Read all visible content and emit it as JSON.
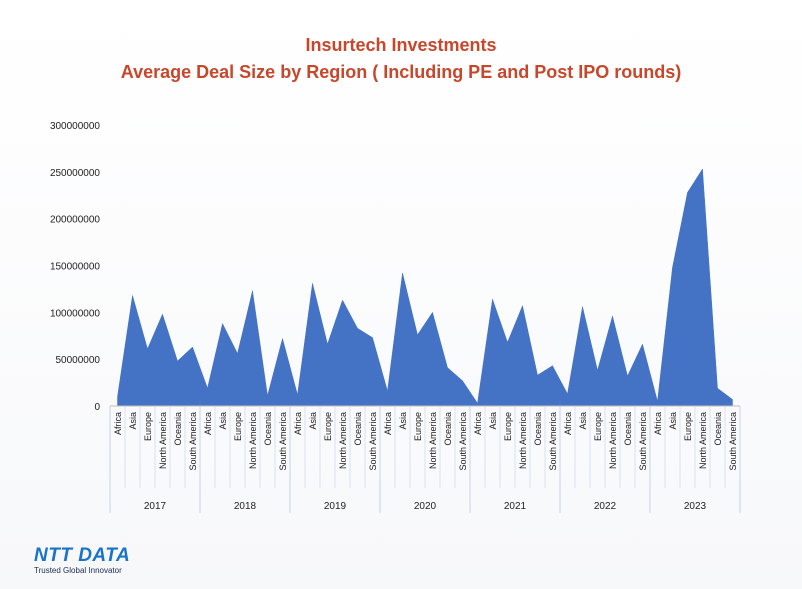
{
  "chart_data": {
    "type": "area",
    "title": "Insurtech Investments",
    "subtitle": "Average Deal Size by Region ( Including PE and Post IPO rounds)",
    "xlabel": "",
    "ylabel": "",
    "ylim": [
      0,
      300000000
    ],
    "yticks": [
      "0",
      "50000000",
      "100000000",
      "150000000",
      "200000000",
      "250000000",
      "300000000"
    ],
    "grid": false,
    "legend": "none",
    "color": "#4472c4",
    "groups": [
      {
        "label": "2017",
        "categories": [
          "Africa",
          "Asia",
          "Europe",
          "North America",
          "Oceania",
          "South America"
        ],
        "values": [
          10000000,
          118000000,
          61000000,
          98000000,
          48000000,
          63000000
        ]
      },
      {
        "label": "2018",
        "categories": [
          "Africa",
          "Asia",
          "Europe",
          "North America",
          "Oceania",
          "South America"
        ],
        "values": [
          19000000,
          88000000,
          56000000,
          123000000,
          11000000,
          72000000
        ]
      },
      {
        "label": "2019",
        "categories": [
          "Africa",
          "Asia",
          "Europe",
          "North America",
          "Oceania",
          "South America"
        ],
        "values": [
          12000000,
          131000000,
          66000000,
          113000000,
          83000000,
          73000000
        ]
      },
      {
        "label": "2020",
        "categories": [
          "Africa",
          "Asia",
          "Europe",
          "North America",
          "Oceania",
          "South America"
        ],
        "values": [
          16000000,
          142000000,
          76000000,
          100000000,
          41000000,
          27000000
        ]
      },
      {
        "label": "2021",
        "categories": [
          "Africa",
          "Asia",
          "Europe",
          "North America",
          "Oceania",
          "South America"
        ],
        "values": [
          3000000,
          114000000,
          68000000,
          107000000,
          33000000,
          43000000
        ]
      },
      {
        "label": "2022",
        "categories": [
          "Africa",
          "Asia",
          "Europe",
          "North America",
          "Oceania",
          "South America"
        ],
        "values": [
          13000000,
          106000000,
          38000000,
          96000000,
          32000000,
          66000000
        ]
      },
      {
        "label": "2023",
        "categories": [
          "Africa",
          "Asia",
          "Europe",
          "North America",
          "Oceania",
          "South America"
        ],
        "values": [
          5000000,
          148000000,
          228000000,
          253000000,
          19000000,
          7000000
        ]
      }
    ]
  },
  "logo": {
    "name": "NTT DATA",
    "tagline": "Trusted Global Innovator"
  }
}
